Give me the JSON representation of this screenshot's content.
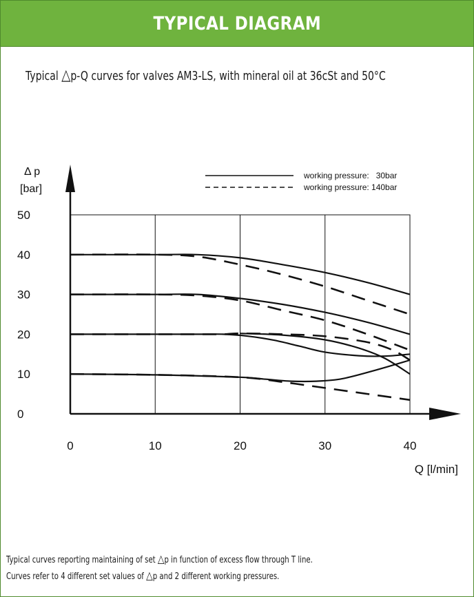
{
  "header": {
    "title": "TYPICAL DIAGRAM"
  },
  "subtitle": {
    "before": "Typical ",
    "delta_symbol": "△",
    "after": "p-Q curves for valves AM3-LS, with mineral oil at 36cSt and 50°C"
  },
  "footer": {
    "line1_before": "Typical curves  reporting maintaining of set ",
    "line1_delta": "△",
    "line1_after": "p  in function of excess flow through T line.",
    "line2_before": "Curves refer to 4 different set values of ",
    "line2_delta": "△",
    "line2_after": "p  and 2 different working pressures."
  },
  "chart_data": {
    "type": "line",
    "ylabel_line1": "Δ p",
    "ylabel_line2": "[bar]",
    "xlabel": "Q [l/min]",
    "xlim": [
      0,
      40
    ],
    "ylim": [
      0,
      50
    ],
    "x_ticks": [
      "0",
      "10",
      "20",
      "30",
      "40"
    ],
    "y_ticks": [
      "0",
      "10",
      "20",
      "30",
      "40",
      "50"
    ],
    "grid": true,
    "legend_position": "top-right",
    "legend": [
      {
        "label": "working pressure:   30bar",
        "style": "solid"
      },
      {
        "label": "working pressure: 140bar",
        "style": "dashed"
      }
    ],
    "series": [
      {
        "set": 40,
        "style": "solid",
        "x": [
          0,
          10,
          15,
          20,
          25,
          30,
          35,
          40
        ],
        "y": [
          40,
          40,
          40,
          39.2,
          37.5,
          35.5,
          33,
          30
        ]
      },
      {
        "set": 40,
        "style": "dashed",
        "x": [
          0,
          10,
          15,
          20,
          25,
          30,
          35,
          40
        ],
        "y": [
          40,
          40,
          39.5,
          37.5,
          35,
          32,
          28.5,
          25
        ]
      },
      {
        "set": 30,
        "style": "solid",
        "x": [
          0,
          10,
          15,
          20,
          25,
          30,
          35,
          40
        ],
        "y": [
          30,
          30,
          30,
          29,
          27.5,
          25.5,
          23,
          20
        ]
      },
      {
        "set": 30,
        "style": "dashed",
        "x": [
          0,
          10,
          15,
          20,
          25,
          30,
          35,
          40
        ],
        "y": [
          30,
          30,
          29.7,
          28.5,
          26,
          23.5,
          20,
          16
        ]
      },
      {
        "set": 20,
        "style": "solid",
        "x": [
          0,
          10,
          15,
          18,
          21,
          24,
          27,
          30,
          34,
          37,
          40
        ],
        "y": [
          20,
          20,
          20,
          20,
          19.5,
          18.5,
          17,
          15.5,
          14.6,
          14.5,
          15
        ]
      },
      {
        "set": 20,
        "style": "dashed",
        "x": [
          0,
          10,
          15,
          18,
          20,
          25,
          30,
          35,
          38,
          40
        ],
        "y": [
          20,
          20,
          20,
          20,
          20.2,
          20,
          19.5,
          18,
          16,
          13.5
        ]
      },
      {
        "set": 20,
        "style": "solid",
        "x": [
          20,
          25,
          30,
          34,
          37,
          40
        ],
        "y": [
          20.2,
          19.8,
          18.6,
          16.5,
          14,
          10
        ]
      },
      {
        "set": 10,
        "style": "solid",
        "x": [
          0,
          10,
          20,
          23,
          26,
          29,
          32,
          36,
          40
        ],
        "y": [
          10,
          9.8,
          9.2,
          8.7,
          8.2,
          8.2,
          8.8,
          11,
          13.5
        ]
      },
      {
        "set": 10,
        "style": "dashed",
        "x": [
          0,
          10,
          20,
          25,
          30,
          35,
          40
        ],
        "y": [
          10,
          9.8,
          9.2,
          8,
          6.5,
          5,
          3.5
        ]
      }
    ]
  }
}
